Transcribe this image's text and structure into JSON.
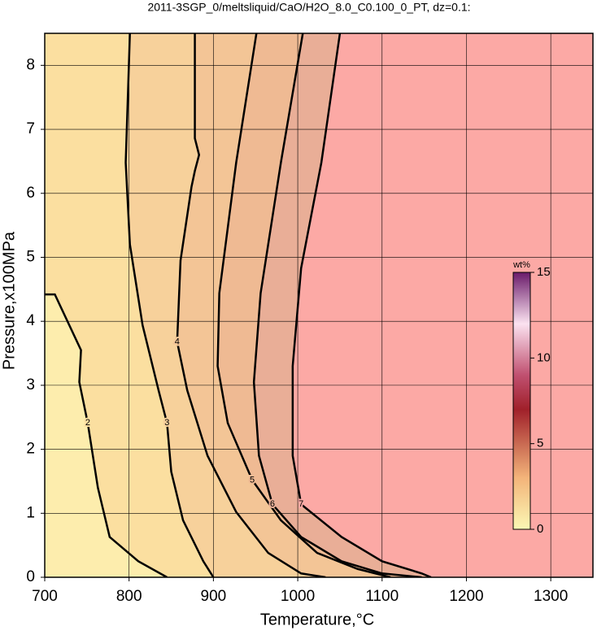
{
  "chart_data": {
    "type": "contour",
    "title": "2011-3SGP_0/meltsliquid/CaO/H2O_8.0_C0.100_0_PT, dz=0.1:",
    "x_label": "Temperature,°C",
    "y_label": "Pressure,x100MPa",
    "xlim": [
      700,
      1350
    ],
    "ylim": [
      0,
      8.5
    ],
    "xticks": [
      700,
      800,
      900,
      1000,
      1100,
      1200,
      1300
    ],
    "yticks": [
      0,
      1,
      2,
      3,
      4,
      5,
      6,
      7,
      8
    ],
    "grid": true,
    "background": "#fdedad",
    "line_color": "#000000",
    "contours": [
      {
        "level": 2,
        "fill": "#fbdfa0",
        "x": [
          700,
          712,
          743,
          741,
          751,
          763,
          777,
          811,
          845
        ],
        "y": [
          4.42,
          4.42,
          3.55,
          3.05,
          2.41,
          1.4,
          0.63,
          0.25,
          0
        ]
      },
      {
        "level": 3,
        "fill": "#f7d19b",
        "x": [
          801,
          796,
          801,
          816,
          835,
          845,
          850,
          864,
          888,
          900
        ],
        "y": [
          8.5,
          6.48,
          5.2,
          3.94,
          2.92,
          2.41,
          1.65,
          0.89,
          0.25,
          0
        ]
      },
      {
        "level": 4,
        "fill": "#f3c596",
        "x": [
          878,
          878,
          883,
          878,
          874,
          861,
          857,
          869,
          893,
          927,
          965,
          1004,
          1033
        ],
        "y": [
          8.5,
          6.86,
          6.6,
          6.35,
          6.1,
          4.95,
          3.68,
          2.92,
          1.9,
          1.02,
          0.38,
          0.06,
          0
        ]
      },
      {
        "level": 5,
        "fill": "#efba93",
        "x": [
          951,
          927,
          907,
          905,
          917,
          946,
          980,
          1023,
          1071,
          1110
        ],
        "y": [
          8.5,
          6.48,
          4.44,
          3.3,
          2.41,
          1.52,
          0.89,
          0.38,
          0.13,
          0
        ]
      },
      {
        "level": 6,
        "fill": "#e9ae97",
        "x": [
          1006,
          980,
          956,
          948,
          954,
          970,
          1004,
          1052,
          1100,
          1147
        ],
        "y": [
          8.5,
          6.48,
          4.44,
          3.05,
          1.9,
          1.14,
          0.63,
          0.25,
          0.06,
          0
        ]
      },
      {
        "level": 7,
        "fill": "#fca9a5",
        "x": [
          1050,
          1028,
          1004,
          994,
          994,
          1004,
          1052,
          1100,
          1147,
          1158
        ],
        "y": [
          8.5,
          6.48,
          4.83,
          3.3,
          1.9,
          1.14,
          0.63,
          0.25,
          0.06,
          0
        ]
      }
    ],
    "colorbar": {
      "label": "wt%",
      "lim": [
        0,
        15
      ],
      "ticks": [
        0,
        5,
        10,
        15
      ],
      "stops": [
        0,
        3,
        7,
        9,
        12,
        15
      ],
      "colors": [
        "#fbf8b4",
        "#f3b47a",
        "#a0202a",
        "#c05070",
        "#fbe2f0",
        "#6a1a6a"
      ]
    }
  }
}
